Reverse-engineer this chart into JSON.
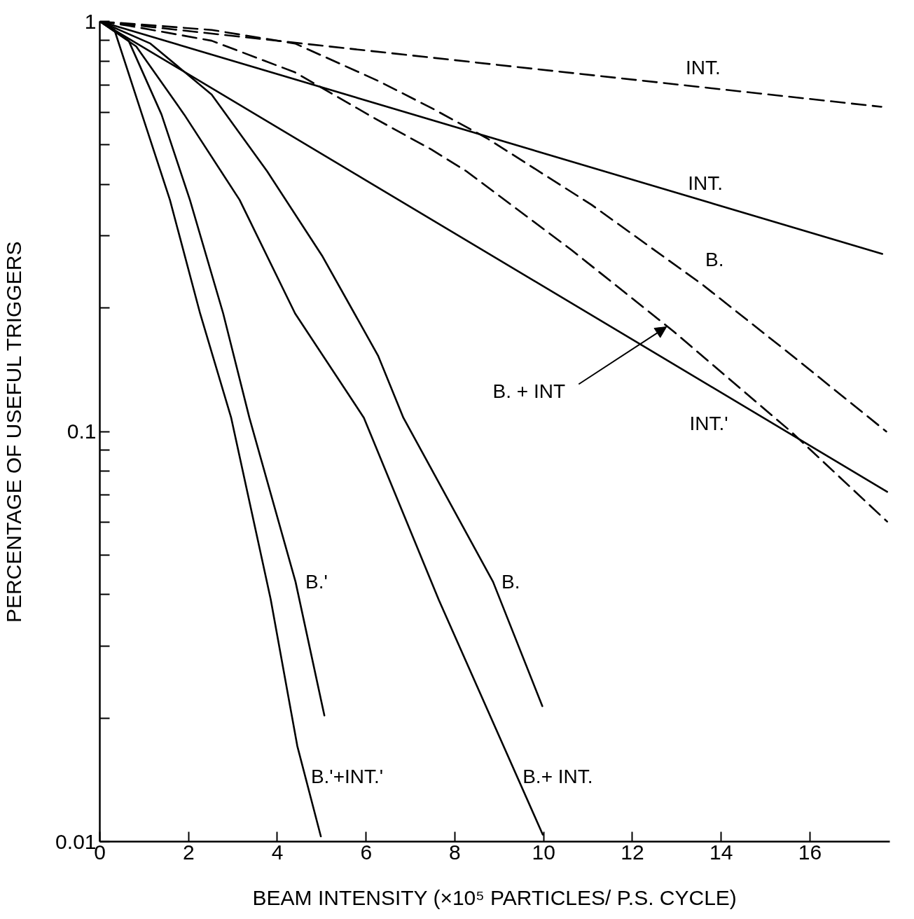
{
  "chart_data": {
    "type": "line",
    "xlabel": "BEAM INTENSITY (×10⁵ PARTICLES/ P.S. CYCLE)",
    "ylabel": "PERCENTAGE OF USEFUL TRIGGERS",
    "log": "y",
    "grid": false,
    "xlim": [
      0,
      17.8
    ],
    "ylim": [
      0.01,
      1
    ],
    "xticks": [
      0,
      2,
      4,
      6,
      8,
      10,
      12,
      14,
      16
    ],
    "yticks": [
      0.01,
      {
        "value": 0.02,
        "label": null
      },
      {
        "value": 0.03,
        "label": null
      },
      {
        "value": 0.04,
        "label": null
      },
      {
        "value": 0.05,
        "label": null
      },
      {
        "value": 0.06,
        "label": null
      },
      {
        "value": 0.07,
        "label": null
      },
      {
        "value": 0.08,
        "label": null
      },
      {
        "value": 0.09,
        "label": null
      },
      0.1,
      {
        "value": 0.2,
        "label": null
      },
      {
        "value": 0.3,
        "label": null
      },
      {
        "value": 0.4,
        "label": null
      },
      {
        "value": 0.5,
        "label": null
      },
      {
        "value": 0.6,
        "label": null
      },
      {
        "value": 0.7,
        "label": null
      },
      {
        "value": 0.8,
        "label": null
      },
      {
        "value": 0.9,
        "label": null
      },
      1
    ],
    "series": [
      {
        "color": "#000000",
        "line_style": "dashed",
        "x": [
          0,
          17.61
        ],
        "values": [
          1,
          0.619
        ]
      },
      {
        "color": "#000000",
        "line_style": "solid",
        "x": [
          0,
          17.63
        ],
        "values": [
          1,
          0.271
        ]
      },
      {
        "color": "#000000",
        "line_style": "solid",
        "x": [
          0,
          17.74
        ],
        "values": [
          1,
          0.0713
        ]
      },
      {
        "color": "#000000",
        "line_style": "dashed",
        "x": [
          0,
          2.52,
          4.4,
          6.27,
          7.47,
          8.72,
          11.08,
          13.58,
          15.57,
          17.72
        ],
        "values": [
          1,
          0.953,
          0.883,
          0.716,
          0.615,
          0.519,
          0.357,
          0.228,
          0.154,
          0.1
        ]
      },
      {
        "color": "#000000",
        "line_style": "dashed",
        "x": [
          0,
          0.65,
          2.52,
          4.4,
          6.27,
          7.47,
          8.26,
          10.63,
          12.91,
          15.57,
          17.74
        ],
        "values": [
          1,
          0.976,
          0.897,
          0.751,
          0.574,
          0.487,
          0.431,
          0.277,
          0.176,
          0.1,
          0.0603
        ]
      },
      {
        "color": "#000000",
        "line_style": "solid",
        "x": [
          0,
          1.14,
          2.52,
          3.77,
          5.02,
          6.27,
          6.84,
          8.86,
          9.97
        ],
        "values": [
          1,
          0.883,
          0.663,
          0.431,
          0.267,
          0.153,
          0.108,
          0.043,
          0.0214
        ]
      },
      {
        "color": "#000000",
        "line_style": "solid",
        "x": [
          0,
          0.82,
          1.9,
          3.15,
          4.4,
          5.95,
          7.64,
          9.98
        ],
        "values": [
          1,
          0.869,
          0.593,
          0.367,
          0.194,
          0.108,
          0.0388,
          0.0104
        ]
      },
      {
        "color": "#000000",
        "line_style": "solid",
        "x": [
          0,
          0.65,
          1.39,
          2.03,
          2.78,
          3.37,
          4.41,
          5.06
        ],
        "values": [
          1,
          0.897,
          0.593,
          0.367,
          0.194,
          0.108,
          0.043,
          0.0203
        ]
      },
      {
        "color": "#000000",
        "line_style": "solid",
        "x": [
          0,
          0.33,
          0.95,
          1.58,
          2.26,
          2.96,
          3.85,
          4.45,
          4.98
        ],
        "values": [
          1,
          0.953,
          0.593,
          0.367,
          0.194,
          0.108,
          0.039,
          0.0171,
          0.0103
        ]
      }
    ],
    "annotations": [
      {
        "text": "INT.",
        "x": 13.2,
        "y": 0.699
      },
      {
        "text": "INT.",
        "x": 13.25,
        "y": 0.376
      },
      {
        "text": "B.",
        "x": 13.58,
        "y": 0.228
      },
      {
        "text": "B. + INT",
        "x": 12.77,
        "y": 0.18
      },
      {
        "text": "INT.'",
        "x": 13.72,
        "y": 0.13
      },
      {
        "text": "B.'",
        "x": 4.41,
        "y": 0.043
      },
      {
        "text": "B.",
        "x": 8.86,
        "y": 0.043
      },
      {
        "text": "B.'+INT.'",
        "x": 4.63,
        "y": 0.0144
      },
      {
        "text": "B.+ INT.",
        "x": 9.4,
        "y": 0.0144
      }
    ]
  }
}
